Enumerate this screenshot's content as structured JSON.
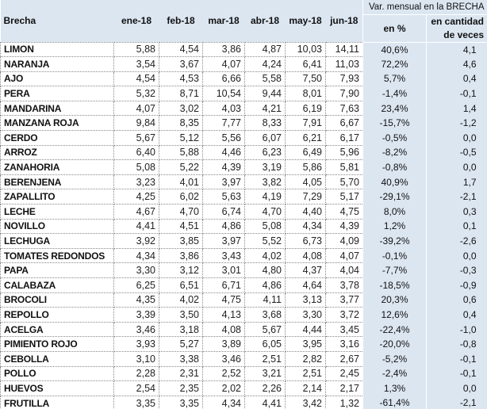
{
  "header": {
    "name": "Brecha",
    "months": [
      "ene-18",
      "feb-18",
      "mar-18",
      "abr-18",
      "may-18",
      "jun-18"
    ],
    "var_group": "Var. mensual en la BRECHA",
    "var_pct": "en %",
    "var_veces": "en cantidad de veces"
  },
  "rows": [
    {
      "name": "LIMON",
      "v": [
        "5,88",
        "4,54",
        "3,86",
        "4,87",
        "10,03",
        "14,11"
      ],
      "pct": "40,6%",
      "veces": "4,1"
    },
    {
      "name": "NARANJA",
      "v": [
        "3,54",
        "3,67",
        "4,07",
        "4,24",
        "6,41",
        "11,03"
      ],
      "pct": "72,2%",
      "veces": "4,6"
    },
    {
      "name": "AJO",
      "v": [
        "4,54",
        "4,53",
        "6,66",
        "5,58",
        "7,50",
        "7,93"
      ],
      "pct": "5,7%",
      "veces": "0,4"
    },
    {
      "name": "PERA",
      "v": [
        "5,32",
        "8,71",
        "10,54",
        "9,44",
        "8,01",
        "7,90"
      ],
      "pct": "-1,4%",
      "veces": "-0,1"
    },
    {
      "name": "MANDARINA",
      "v": [
        "4,07",
        "3,02",
        "4,03",
        "4,21",
        "6,19",
        "7,63"
      ],
      "pct": "23,4%",
      "veces": "1,4"
    },
    {
      "name": "MANZANA ROJA",
      "v": [
        "9,84",
        "8,35",
        "7,77",
        "8,33",
        "7,91",
        "6,67"
      ],
      "pct": "-15,7%",
      "veces": "-1,2"
    },
    {
      "name": "CERDO",
      "v": [
        "5,67",
        "5,12",
        "5,56",
        "6,07",
        "6,21",
        "6,17"
      ],
      "pct": "-0,5%",
      "veces": "0,0"
    },
    {
      "name": "ARROZ",
      "v": [
        "6,40",
        "5,88",
        "4,46",
        "6,23",
        "6,49",
        "5,96"
      ],
      "pct": "-8,2%",
      "veces": "-0,5"
    },
    {
      "name": "ZANAHORIA",
      "v": [
        "5,08",
        "5,22",
        "4,39",
        "3,19",
        "5,86",
        "5,81"
      ],
      "pct": "-0,8%",
      "veces": "0,0"
    },
    {
      "name": "BERENJENA",
      "v": [
        "3,23",
        "4,01",
        "3,97",
        "3,82",
        "4,05",
        "5,70"
      ],
      "pct": "40,9%",
      "veces": "1,7"
    },
    {
      "name": "ZAPALLITO",
      "v": [
        "4,25",
        "6,02",
        "5,63",
        "4,19",
        "7,29",
        "5,17"
      ],
      "pct": "-29,1%",
      "veces": "-2,1"
    },
    {
      "name": "LECHE",
      "v": [
        "4,67",
        "4,70",
        "6,74",
        "4,70",
        "4,40",
        "4,75"
      ],
      "pct": "8,0%",
      "veces": "0,3"
    },
    {
      "name": "NOVILLO",
      "v": [
        "4,41",
        "4,51",
        "4,86",
        "5,08",
        "4,34",
        "4,39"
      ],
      "pct": "1,2%",
      "veces": "0,1"
    },
    {
      "name": "LECHUGA",
      "v": [
        "3,92",
        "3,85",
        "3,97",
        "5,52",
        "6,73",
        "4,09"
      ],
      "pct": "-39,2%",
      "veces": "-2,6"
    },
    {
      "name": "TOMATES REDONDOS",
      "v": [
        "4,34",
        "3,86",
        "3,43",
        "4,02",
        "4,08",
        "4,07"
      ],
      "pct": "-0,1%",
      "veces": "0,0"
    },
    {
      "name": "PAPA",
      "v": [
        "3,30",
        "3,12",
        "3,01",
        "4,80",
        "4,37",
        "4,04"
      ],
      "pct": "-7,7%",
      "veces": "-0,3"
    },
    {
      "name": "CALABAZA",
      "v": [
        "6,25",
        "6,51",
        "6,71",
        "4,86",
        "4,64",
        "3,78"
      ],
      "pct": "-18,5%",
      "veces": "-0,9"
    },
    {
      "name": "BROCOLI",
      "v": [
        "4,35",
        "4,02",
        "4,75",
        "4,11",
        "3,13",
        "3,77"
      ],
      "pct": "20,3%",
      "veces": "0,6"
    },
    {
      "name": "REPOLLO",
      "v": [
        "3,39",
        "3,50",
        "4,13",
        "3,68",
        "3,30",
        "3,72"
      ],
      "pct": "12,6%",
      "veces": "0,4"
    },
    {
      "name": "ACELGA",
      "v": [
        "3,46",
        "3,18",
        "4,08",
        "5,67",
        "4,44",
        "3,45"
      ],
      "pct": "-22,4%",
      "veces": "-1,0"
    },
    {
      "name": "PIMIENTO ROJO",
      "v": [
        "3,93",
        "5,27",
        "3,89",
        "6,05",
        "3,95",
        "3,16"
      ],
      "pct": "-20,0%",
      "veces": "-0,8"
    },
    {
      "name": "CEBOLLA",
      "v": [
        "3,10",
        "3,38",
        "3,46",
        "2,51",
        "2,82",
        "2,67"
      ],
      "pct": "-5,2%",
      "veces": "-0,1"
    },
    {
      "name": "POLLO",
      "v": [
        "2,28",
        "2,31",
        "2,52",
        "3,21",
        "2,51",
        "2,45"
      ],
      "pct": "-2,4%",
      "veces": "-0,1"
    },
    {
      "name": "HUEVOS",
      "v": [
        "2,54",
        "2,35",
        "2,02",
        "2,26",
        "2,14",
        "2,17"
      ],
      "pct": "1,3%",
      "veces": "0,0"
    },
    {
      "name": "FRUTILLA",
      "v": [
        "3,35",
        "3,35",
        "4,34",
        "4,41",
        "3,42",
        "1,32"
      ],
      "pct": "-61,4%",
      "veces": "-2,1"
    }
  ]
}
